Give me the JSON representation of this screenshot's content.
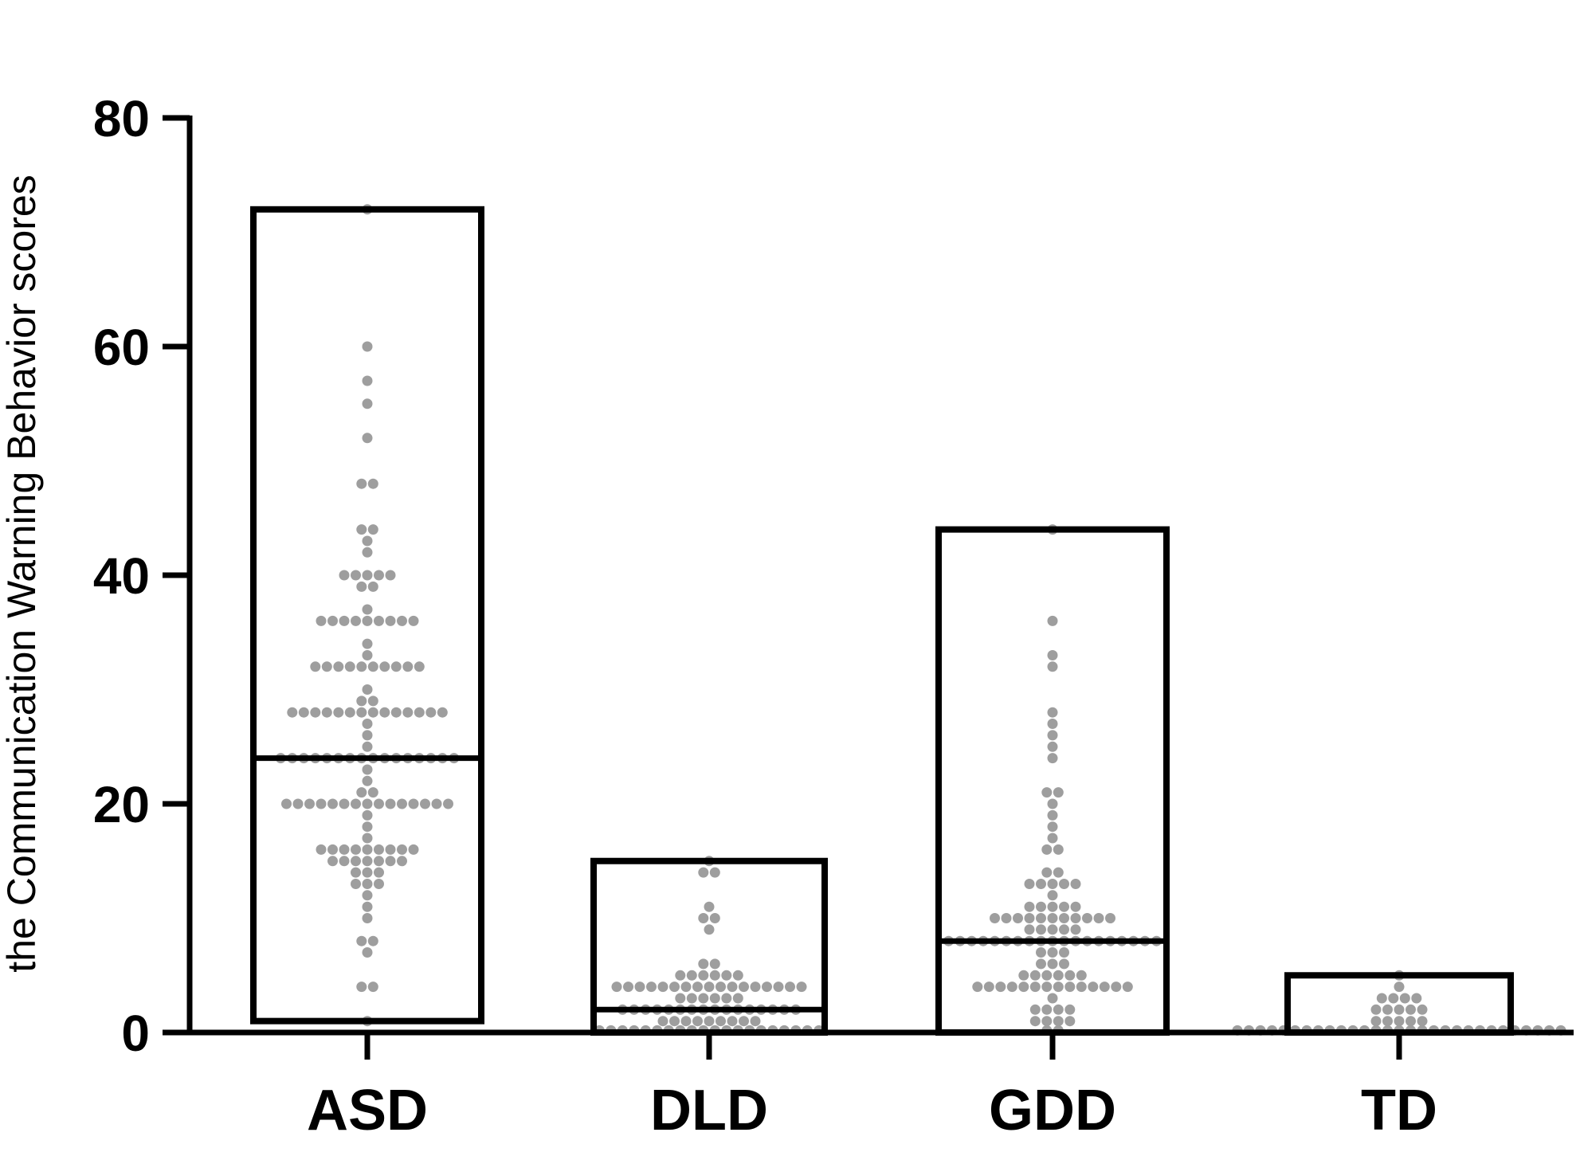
{
  "chart_data": {
    "type": "scatter",
    "xlabel": "",
    "ylabel": "the Communication Warning Behavior scores",
    "ylim": [
      0,
      80
    ],
    "yticks": [
      0,
      20,
      40,
      60,
      80
    ],
    "ytick_labels": [
      "0",
      "20",
      "40",
      "60",
      "80"
    ],
    "categories": [
      "ASD",
      "DLD",
      "GDD",
      "TD"
    ],
    "grid": false,
    "legend": "none",
    "colors": {
      "axis": "#000000",
      "box": "#000000",
      "points": "#9e9e9e"
    },
    "groups": [
      {
        "category": "ASD",
        "max": 72,
        "min": 1,
        "median": 24,
        "points": [
          72,
          60,
          57,
          55,
          52,
          48,
          48,
          44,
          44,
          43,
          42,
          40,
          40,
          40,
          40,
          40,
          39,
          39,
          37,
          36,
          36,
          36,
          36,
          36,
          36,
          36,
          36,
          36,
          34,
          33,
          32,
          32,
          32,
          32,
          32,
          32,
          32,
          32,
          32,
          32,
          30,
          29,
          29,
          28,
          28,
          28,
          28,
          28,
          28,
          28,
          28,
          28,
          28,
          28,
          28,
          28,
          28,
          27,
          26,
          25,
          24,
          24,
          24,
          24,
          24,
          24,
          24,
          24,
          24,
          24,
          24,
          24,
          24,
          24,
          24,
          24,
          23,
          22,
          21,
          21,
          20,
          20,
          20,
          20,
          20,
          20,
          20,
          20,
          20,
          20,
          20,
          20,
          20,
          20,
          20,
          19,
          18,
          17,
          16,
          16,
          16,
          16,
          16,
          16,
          16,
          16,
          16,
          15,
          15,
          15,
          15,
          15,
          15,
          15,
          14,
          14,
          14,
          13,
          13,
          13,
          12,
          11,
          10,
          8,
          8,
          7,
          4,
          4,
          1
        ]
      },
      {
        "category": "DLD",
        "max": 15,
        "min": 0,
        "median": 2,
        "points": [
          15,
          14,
          14,
          11,
          10,
          10,
          9,
          6,
          6,
          5,
          5,
          5,
          5,
          5,
          5,
          4,
          4,
          4,
          4,
          4,
          4,
          4,
          4,
          4,
          4,
          4,
          4,
          4,
          4,
          4,
          4,
          4,
          3,
          3,
          3,
          3,
          3,
          3,
          2,
          2,
          2,
          2,
          2,
          2,
          2,
          2,
          2,
          2,
          2,
          2,
          2,
          2,
          2,
          2,
          1,
          1,
          1,
          1,
          1,
          1,
          1,
          1,
          1,
          0,
          0,
          0,
          0,
          0,
          0,
          0,
          0,
          0,
          0,
          0,
          0,
          0,
          0,
          0,
          0,
          0,
          0,
          0,
          0
        ]
      },
      {
        "category": "GDD",
        "max": 44,
        "min": 0,
        "median": 8,
        "points": [
          44,
          36,
          33,
          32,
          28,
          27,
          26,
          25,
          24,
          21,
          21,
          20,
          19,
          18,
          17,
          16,
          16,
          14,
          14,
          13,
          13,
          13,
          13,
          13,
          12,
          11,
          11,
          11,
          11,
          11,
          10,
          10,
          10,
          10,
          10,
          10,
          10,
          10,
          10,
          10,
          10,
          9,
          9,
          9,
          9,
          9,
          8,
          8,
          8,
          8,
          8,
          8,
          8,
          8,
          8,
          8,
          8,
          8,
          8,
          8,
          8,
          8,
          8,
          8,
          8,
          7,
          7,
          7,
          6,
          6,
          6,
          5,
          5,
          5,
          5,
          5,
          5,
          4,
          4,
          4,
          4,
          4,
          4,
          4,
          4,
          4,
          4,
          4,
          4,
          4,
          4,
          3,
          2,
          2,
          2,
          2,
          1,
          1,
          1,
          1,
          0,
          0
        ]
      },
      {
        "category": "TD",
        "max": 5,
        "min": 0,
        "median": 0,
        "points": [
          5,
          4,
          3,
          3,
          3,
          3,
          2,
          2,
          2,
          2,
          2,
          1,
          1,
          1,
          1,
          1,
          0,
          0,
          0,
          0,
          0,
          0,
          0,
          0,
          0,
          0,
          0,
          0,
          0,
          0,
          0,
          0,
          0,
          0,
          0,
          0,
          0,
          0,
          0,
          0,
          0,
          0,
          0,
          0,
          0
        ]
      }
    ]
  }
}
